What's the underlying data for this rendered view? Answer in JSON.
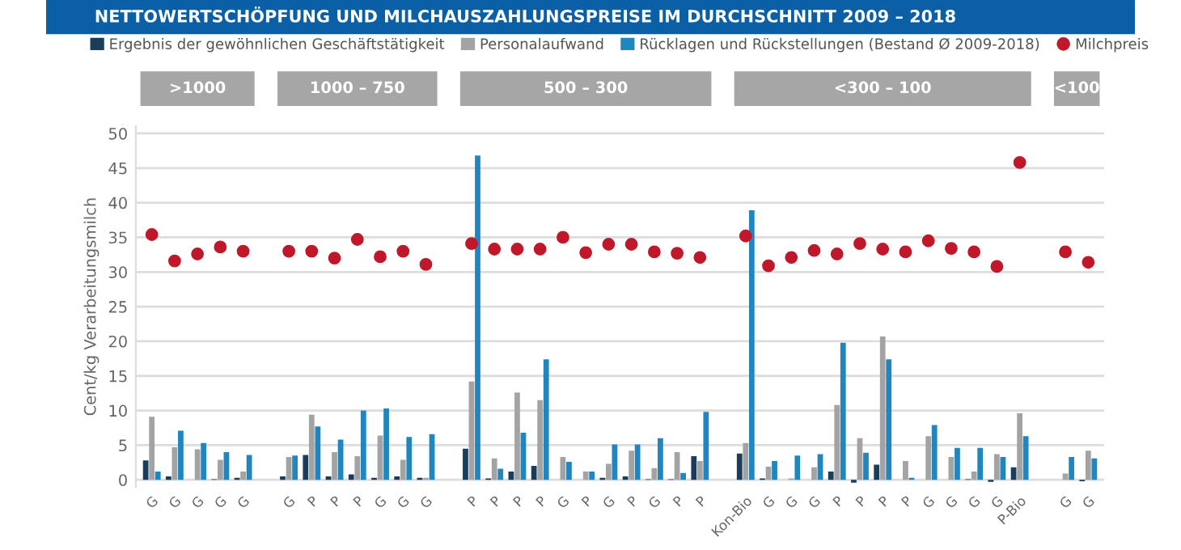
{
  "chart_data": {
    "type": "bar",
    "title": "NETTOWERTSCHÖPFUNG UND MILCHAUSZAHLUNGSPREISE IM DURCHSCHNITT 2009 – 2018",
    "ylabel": "Cent/kg Verarbeitungsmilch",
    "annotations": [
      ">1000",
      "1000 – 750",
      "500 – 300",
      "<300 – 100",
      "<100"
    ],
    "categories": [
      "G",
      "G",
      "G",
      "G",
      "G",
      null,
      "G",
      "P",
      "P",
      "P",
      "G",
      "G",
      "G",
      null,
      "P",
      "P",
      "P",
      "P",
      "G",
      "P",
      "G",
      "P",
      "G",
      "P",
      "P",
      null,
      "Kon-Bio",
      "G",
      "G",
      "G",
      "P",
      "P",
      "P",
      "P",
      "G",
      "G",
      "G",
      "G",
      "P-Bio",
      null,
      "G",
      "G"
    ],
    "series": [
      {
        "name": "Ergebnis der gewöhnlichen Geschäftstätigkeit",
        "color": "#1b3d5c",
        "values": [
          2.8,
          0.5,
          0,
          0.1,
          0.3,
          null,
          0.5,
          3.6,
          0.5,
          0.8,
          0.3,
          0.5,
          0.3,
          null,
          4.5,
          0.2,
          1.2,
          2.0,
          0,
          0,
          0.3,
          0.5,
          0.1,
          0.1,
          3.4,
          null,
          3.8,
          0.2,
          0,
          null,
          1.2,
          -0.4,
          2.2,
          null,
          0,
          0,
          0.1,
          -0.3,
          1.8,
          null,
          0,
          -0.2
        ]
      },
      {
        "name": "Personalaufwand",
        "color": "#a3a3a3",
        "values": [
          9.1,
          4.7,
          4.4,
          2.9,
          1.2,
          null,
          3.3,
          9.4,
          4.0,
          3.4,
          6.4,
          2.9,
          0.3,
          null,
          14.2,
          3.1,
          12.6,
          11.5,
          3.3,
          1.2,
          2.3,
          4.2,
          1.7,
          4.0,
          2.7,
          null,
          5.3,
          1.9,
          0.2,
          1.8,
          10.8,
          6.0,
          20.7,
          2.7,
          6.3,
          3.3,
          1.2,
          3.7,
          9.6,
          null,
          0.9,
          4.2
        ]
      },
      {
        "name": "Rücklagen und Rückstellungen (Bestand Ø 2009-2018)",
        "color": "#1f86bf",
        "values": [
          1.2,
          7.1,
          5.3,
          4.0,
          3.6,
          null,
          3.5,
          7.7,
          5.8,
          10.0,
          10.3,
          6.2,
          6.6,
          null,
          46.8,
          1.6,
          6.8,
          17.4,
          2.6,
          1.2,
          5.1,
          5.1,
          6.0,
          1.0,
          9.8,
          null,
          38.9,
          2.7,
          3.5,
          3.7,
          19.8,
          3.9,
          17.4,
          0.3,
          7.9,
          4.6,
          4.6,
          3.3,
          6.3,
          null,
          3.3,
          3.1
        ]
      },
      {
        "name": "Milchpreis",
        "type": "scatter",
        "color": "#c0182a",
        "values": [
          35.4,
          31.6,
          32.6,
          33.6,
          33.0,
          null,
          33.0,
          33.0,
          32.0,
          34.7,
          32.2,
          33.0,
          31.1,
          null,
          34.1,
          33.3,
          33.3,
          33.3,
          35.0,
          32.8,
          34.0,
          34.0,
          32.9,
          32.7,
          32.1,
          null,
          35.2,
          30.9,
          32.1,
          33.1,
          32.6,
          34.1,
          33.3,
          32.9,
          34.5,
          33.4,
          32.9,
          30.8,
          45.8,
          null,
          32.9,
          31.4
        ]
      }
    ],
    "ylim": [
      -1,
      51
    ],
    "yticks": [
      0,
      5,
      10,
      15,
      20,
      25,
      30,
      35,
      40,
      45,
      50
    ],
    "grid": "y",
    "legend": "top",
    "marker": "circle"
  }
}
